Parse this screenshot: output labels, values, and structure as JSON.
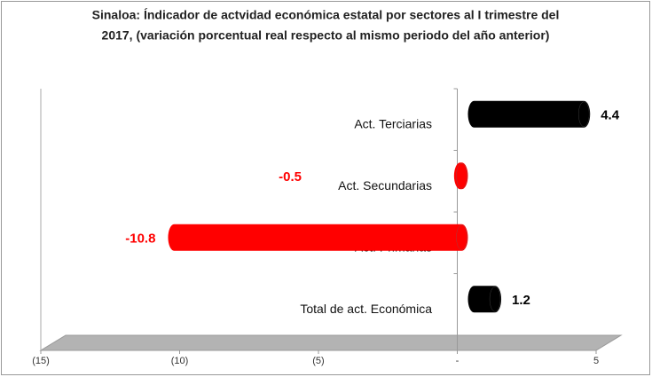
{
  "chart_data": {
    "type": "bar",
    "orientation": "horizontal",
    "title": [
      "Sinaloa: Índicador de actvidad económica  estatal por sectores al I trimestre del",
      "2017, (variación  porcentual real respecto al mismo periodo del año anterior)"
    ],
    "categories": [
      "Act. Terciarias",
      "Act. Secundarias",
      "Act. Primarias",
      "Total de act. Económica"
    ],
    "values": [
      4.4,
      -0.5,
      -10.8,
      1.2
    ],
    "colors": [
      "#000000",
      "#ff0000",
      "#ff0000",
      "#000000"
    ],
    "xlim": [
      -15,
      5
    ],
    "xticks": [
      {
        "value": -15,
        "label": "(15)"
      },
      {
        "value": -10,
        "label": "(10)"
      },
      {
        "value": -5,
        "label": "(5)"
      },
      {
        "value": 0,
        "label": "-"
      },
      5
    ]
  }
}
